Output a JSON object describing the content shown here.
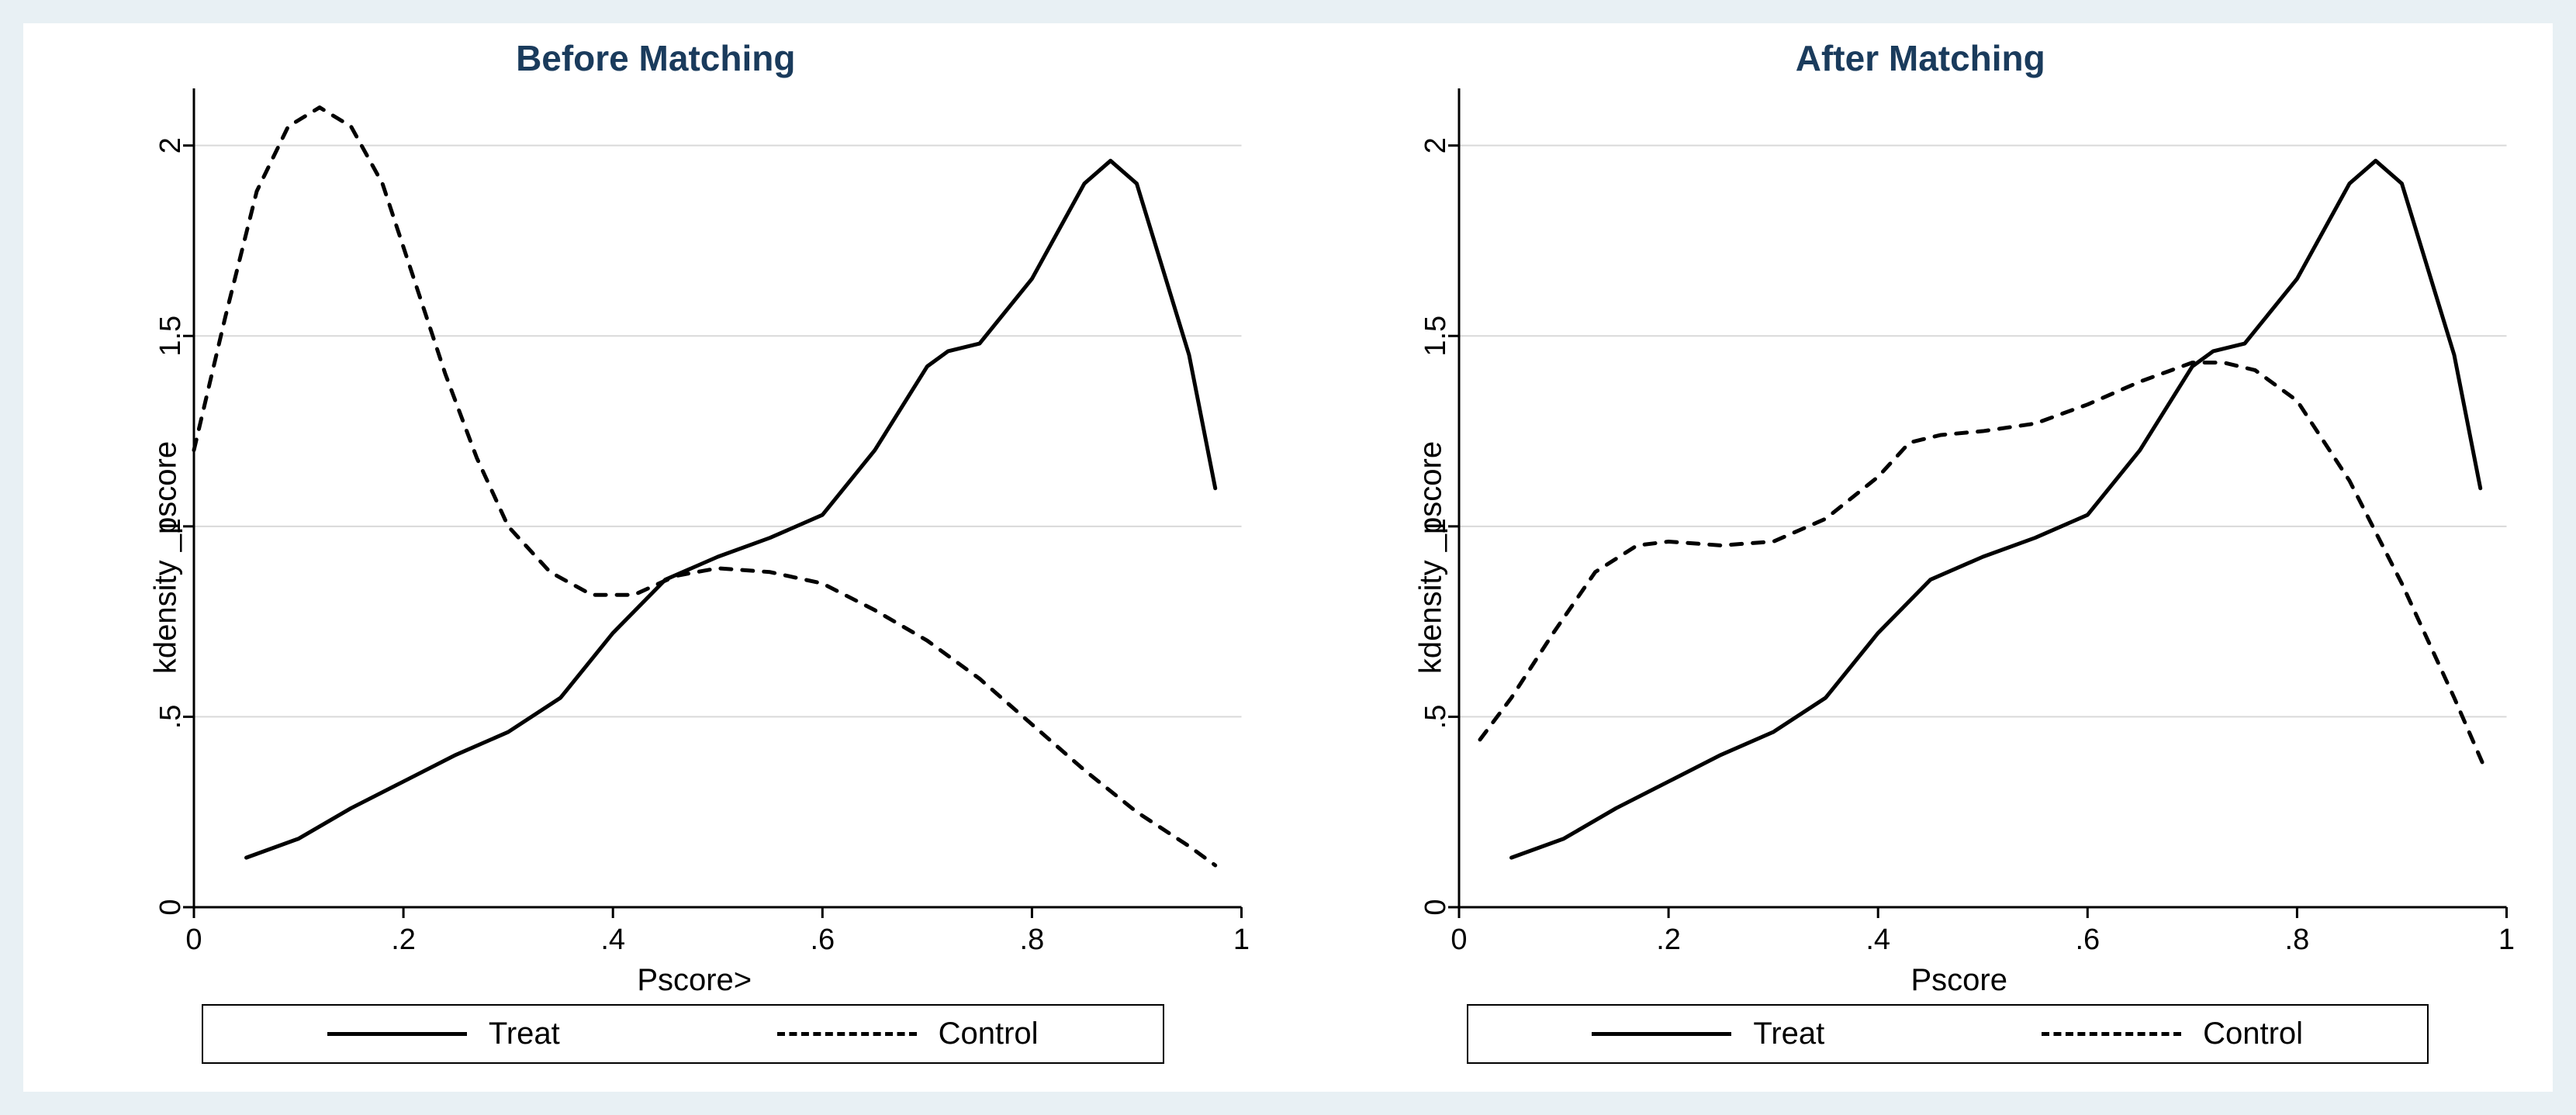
{
  "layout": {
    "background_color": "#e8f0f4",
    "panel_bg": "#ffffff",
    "title_color": "#1a3b5c",
    "title_fontsize": 46,
    "axis_color": "#000000",
    "grid_color": "#d9d9d9",
    "text_color": "#000000",
    "label_fontsize": 40,
    "tick_fontsize": 38,
    "line_width_data": 5,
    "line_width_axis": 3,
    "dash_pattern": "14 14"
  },
  "panels": [
    {
      "title": "Before Matching",
      "ylabel": "kdensity _pscore",
      "xlabel": "Pscore>",
      "xlim": [
        0,
        1
      ],
      "ylim": [
        0,
        2.15
      ],
      "xticks": [
        0,
        0.2,
        0.4,
        0.6,
        0.8,
        1
      ],
      "xtick_labels": [
        "0",
        ".2",
        ".4",
        ".6",
        ".8",
        "1"
      ],
      "yticks": [
        0,
        0.5,
        1,
        1.5,
        2
      ],
      "ytick_labels": [
        "0",
        ".5",
        "1",
        "1.5",
        "2"
      ],
      "series": [
        {
          "name": "Treat",
          "style": "solid",
          "color": "#000000",
          "x": [
            0.05,
            0.1,
            0.15,
            0.2,
            0.25,
            0.3,
            0.35,
            0.4,
            0.45,
            0.5,
            0.55,
            0.6,
            0.65,
            0.7,
            0.72,
            0.75,
            0.8,
            0.85,
            0.875,
            0.9,
            0.95,
            0.975
          ],
          "y": [
            0.13,
            0.18,
            0.26,
            0.33,
            0.4,
            0.46,
            0.55,
            0.72,
            0.86,
            0.92,
            0.97,
            1.03,
            1.2,
            1.42,
            1.46,
            1.48,
            1.65,
            1.9,
            1.96,
            1.9,
            1.45,
            1.1
          ]
        },
        {
          "name": "Control",
          "style": "dashed",
          "color": "#000000",
          "x": [
            0.0,
            0.03,
            0.06,
            0.09,
            0.12,
            0.15,
            0.18,
            0.21,
            0.24,
            0.27,
            0.3,
            0.34,
            0.38,
            0.42,
            0.46,
            0.5,
            0.55,
            0.6,
            0.65,
            0.7,
            0.75,
            0.8,
            0.85,
            0.9,
            0.95,
            0.975
          ],
          "y": [
            1.2,
            1.55,
            1.88,
            2.05,
            2.1,
            2.05,
            1.9,
            1.65,
            1.4,
            1.18,
            1.0,
            0.88,
            0.82,
            0.82,
            0.87,
            0.89,
            0.88,
            0.85,
            0.78,
            0.7,
            0.6,
            0.48,
            0.36,
            0.25,
            0.16,
            0.11
          ]
        }
      ]
    },
    {
      "title": "After Matching",
      "ylabel": "kdensity _pscore",
      "xlabel": "Pscore",
      "xlim": [
        0,
        1
      ],
      "ylim": [
        0,
        2.15
      ],
      "xticks": [
        0,
        0.2,
        0.4,
        0.6,
        0.8,
        1
      ],
      "xtick_labels": [
        "0",
        ".2",
        ".4",
        ".6",
        ".8",
        "1"
      ],
      "yticks": [
        0,
        0.5,
        1,
        1.5,
        2
      ],
      "ytick_labels": [
        "0",
        ".5",
        "1",
        "1.5",
        "2"
      ],
      "series": [
        {
          "name": "Treat",
          "style": "solid",
          "color": "#000000",
          "x": [
            0.05,
            0.1,
            0.15,
            0.2,
            0.25,
            0.3,
            0.35,
            0.4,
            0.45,
            0.5,
            0.55,
            0.6,
            0.65,
            0.7,
            0.72,
            0.75,
            0.8,
            0.85,
            0.875,
            0.9,
            0.95,
            0.975
          ],
          "y": [
            0.13,
            0.18,
            0.26,
            0.33,
            0.4,
            0.46,
            0.55,
            0.72,
            0.86,
            0.92,
            0.97,
            1.03,
            1.2,
            1.42,
            1.46,
            1.48,
            1.65,
            1.9,
            1.96,
            1.9,
            1.45,
            1.1
          ]
        },
        {
          "name": "Control",
          "style": "dashed",
          "color": "#000000",
          "x": [
            0.02,
            0.05,
            0.09,
            0.13,
            0.17,
            0.2,
            0.25,
            0.3,
            0.35,
            0.4,
            0.43,
            0.46,
            0.5,
            0.55,
            0.6,
            0.65,
            0.7,
            0.73,
            0.76,
            0.8,
            0.85,
            0.9,
            0.95,
            0.98
          ],
          "y": [
            0.44,
            0.55,
            0.72,
            0.88,
            0.95,
            0.96,
            0.95,
            0.96,
            1.02,
            1.13,
            1.22,
            1.24,
            1.25,
            1.27,
            1.32,
            1.38,
            1.43,
            1.43,
            1.41,
            1.33,
            1.12,
            0.85,
            0.55,
            0.36
          ]
        }
      ]
    }
  ],
  "legend": {
    "items": [
      {
        "label": "Treat",
        "style": "solid"
      },
      {
        "label": "Control",
        "style": "dashed"
      }
    ]
  }
}
